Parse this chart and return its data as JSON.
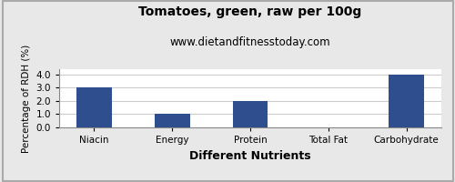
{
  "title": "Tomatoes, green, raw per 100g",
  "subtitle": "www.dietandfitnesstoday.com",
  "xlabel": "Different Nutrients",
  "ylabel": "Percentage of RDH (%)",
  "categories": [
    "Niacin",
    "Energy",
    "Protein",
    "Total Fat",
    "Carbohydrate"
  ],
  "values": [
    3.0,
    1.0,
    2.0,
    0.03,
    4.0
  ],
  "bar_color": "#2e4e8e",
  "ylim": [
    0,
    4.4
  ],
  "yticks": [
    0.0,
    1.0,
    2.0,
    3.0,
    4.0
  ],
  "background_color": "#e8e8e8",
  "plot_bg_color": "#ffffff",
  "title_fontsize": 10,
  "subtitle_fontsize": 8.5,
  "xlabel_fontsize": 9,
  "ylabel_fontsize": 7.5,
  "tick_fontsize": 7.5,
  "border_color": "#aaaaaa",
  "grid_color": "#cccccc"
}
